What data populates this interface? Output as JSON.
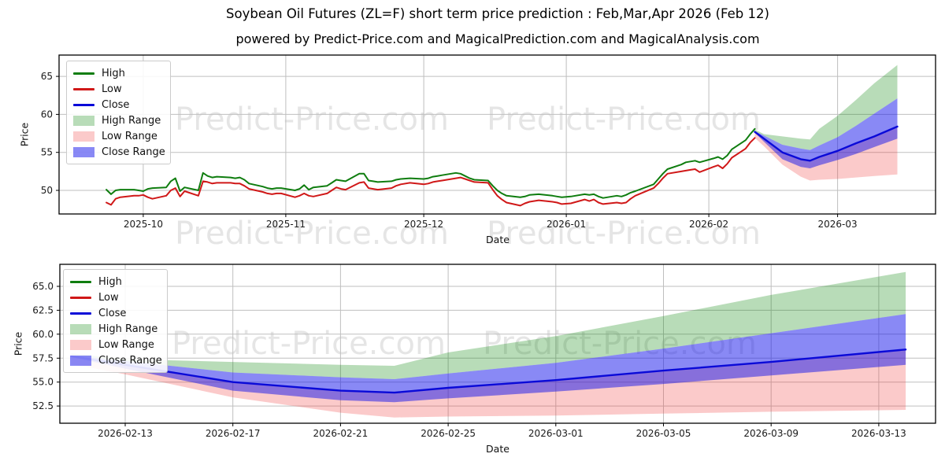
{
  "title": "Soybean Oil Futures (ZL=F) short term price prediction : Feb,Mar,Apr 2026 (Feb 12)",
  "subtitle": "powered by Predict-Price.com and MagicalPrediction.com and MagicalAnalysis.com",
  "watermark": {
    "text": "Predict-Price.com"
  },
  "axes": {
    "xlabel": "Date",
    "ylabel": "Price"
  },
  "colors": {
    "high_line": "#0f7d0f",
    "low_line": "#d01818",
    "close_line": "#0a0ad8",
    "high_fill": "rgba(0,128,0,0.28)",
    "low_fill": "rgba(240,60,60,0.27)",
    "close_fill": "rgba(20,20,235,0.50)",
    "grid": "#bfbfbf",
    "spine": "#000000",
    "tick_text": "#1a1a1a"
  },
  "legend": {
    "items": [
      {
        "label": "High",
        "swatch": "line",
        "color": "high_line"
      },
      {
        "label": "Low",
        "swatch": "line",
        "color": "low_line"
      },
      {
        "label": "Close",
        "swatch": "line",
        "color": "close_line"
      },
      {
        "label": "High Range",
        "swatch": "patch",
        "color": "high_fill"
      },
      {
        "label": "Low Range",
        "swatch": "patch",
        "color": "low_fill"
      },
      {
        "label": "Close Range",
        "swatch": "patch",
        "color": "close_fill"
      }
    ]
  },
  "chart_data": [
    {
      "type": "line",
      "name": "history-and-forecast",
      "xlabel": "Date",
      "ylabel": "Price",
      "grid": true,
      "legend_position": "upper left",
      "xlim_dates": [
        "2025-09-13",
        "2026-03-22"
      ],
      "ylim": [
        46.9,
        67.8
      ],
      "x_ticks": [
        {
          "date": "2025-10-01",
          "label": "2025-10"
        },
        {
          "date": "2025-11-01",
          "label": "2025-11"
        },
        {
          "date": "2025-12-01",
          "label": "2025-12"
        },
        {
          "date": "2026-01-01",
          "label": "2026-01"
        },
        {
          "date": "2026-02-01",
          "label": "2026-02"
        },
        {
          "date": "2026-03-01",
          "label": "2026-03"
        }
      ],
      "y_ticks": [
        {
          "value": 50,
          "label": "50"
        },
        {
          "value": 55,
          "label": "55"
        },
        {
          "value": 60,
          "label": "60"
        },
        {
          "value": 65,
          "label": "65"
        }
      ],
      "series": {
        "history": {
          "dates": [
            "2025-09-23",
            "2025-09-24",
            "2025-09-25",
            "2025-09-26",
            "2025-09-29",
            "2025-09-30",
            "2025-10-01",
            "2025-10-02",
            "2025-10-03",
            "2025-10-06",
            "2025-10-07",
            "2025-10-08",
            "2025-10-09",
            "2025-10-10",
            "2025-10-13",
            "2025-10-14",
            "2025-10-15",
            "2025-10-16",
            "2025-10-17",
            "2025-10-20",
            "2025-10-21",
            "2025-10-22",
            "2025-10-23",
            "2025-10-24",
            "2025-10-27",
            "2025-10-28",
            "2025-10-29",
            "2025-10-30",
            "2025-10-31",
            "2025-11-03",
            "2025-11-04",
            "2025-11-05",
            "2025-11-06",
            "2025-11-07",
            "2025-11-10",
            "2025-11-11",
            "2025-11-12",
            "2025-11-13",
            "2025-11-14",
            "2025-11-17",
            "2025-11-18",
            "2025-11-19",
            "2025-11-20",
            "2025-11-21",
            "2025-11-24",
            "2025-11-25",
            "2025-11-26",
            "2025-11-28",
            "2025-12-01",
            "2025-12-02",
            "2025-12-03",
            "2025-12-04",
            "2025-12-05",
            "2025-12-08",
            "2025-12-09",
            "2025-12-10",
            "2025-12-11",
            "2025-12-12",
            "2025-12-15",
            "2025-12-16",
            "2025-12-17",
            "2025-12-18",
            "2025-12-19",
            "2025-12-22",
            "2025-12-23",
            "2025-12-24",
            "2025-12-26",
            "2025-12-29",
            "2025-12-30",
            "2025-12-31",
            "2026-01-02",
            "2026-01-05",
            "2026-01-06",
            "2026-01-07",
            "2026-01-08",
            "2026-01-09",
            "2026-01-12",
            "2026-01-13",
            "2026-01-14",
            "2026-01-15",
            "2026-01-16",
            "2026-01-20",
            "2026-01-21",
            "2026-01-22",
            "2026-01-23",
            "2026-01-26",
            "2026-01-27",
            "2026-01-28",
            "2026-01-29",
            "2026-01-30",
            "2026-02-02",
            "2026-02-03",
            "2026-02-04",
            "2026-02-05",
            "2026-02-06",
            "2026-02-09",
            "2026-02-10",
            "2026-02-11"
          ],
          "high": [
            50.1,
            49.5,
            50.0,
            50.1,
            50.1,
            50.0,
            49.9,
            50.2,
            50.3,
            50.4,
            51.2,
            51.6,
            49.9,
            50.4,
            50.0,
            52.3,
            51.9,
            51.7,
            51.8,
            51.7,
            51.6,
            51.7,
            51.4,
            50.9,
            50.5,
            50.3,
            50.2,
            50.3,
            50.3,
            50.0,
            50.2,
            50.7,
            50.1,
            50.4,
            50.6,
            51.0,
            51.4,
            51.3,
            51.2,
            52.2,
            52.2,
            51.3,
            51.2,
            51.1,
            51.2,
            51.4,
            51.5,
            51.6,
            51.5,
            51.6,
            51.8,
            51.9,
            52.0,
            52.3,
            52.2,
            51.9,
            51.6,
            51.4,
            51.3,
            50.6,
            50.0,
            49.6,
            49.3,
            49.1,
            49.2,
            49.4,
            49.5,
            49.3,
            49.2,
            49.1,
            49.2,
            49.5,
            49.4,
            49.5,
            49.2,
            49.0,
            49.3,
            49.2,
            49.4,
            49.7,
            49.9,
            50.8,
            51.5,
            52.2,
            52.8,
            53.4,
            53.7,
            53.8,
            53.9,
            53.7,
            54.2,
            54.4,
            54.1,
            54.6,
            55.4,
            56.6,
            57.4,
            58.1
          ],
          "low": [
            48.4,
            48.1,
            48.9,
            49.1,
            49.3,
            49.3,
            49.4,
            49.1,
            48.9,
            49.3,
            50.0,
            50.3,
            49.2,
            49.9,
            49.3,
            51.2,
            51.1,
            50.9,
            51.0,
            51.0,
            50.9,
            50.9,
            50.6,
            50.2,
            49.8,
            49.6,
            49.5,
            49.6,
            49.6,
            49.1,
            49.3,
            49.6,
            49.3,
            49.2,
            49.6,
            50.0,
            50.4,
            50.2,
            50.1,
            51.0,
            51.1,
            50.3,
            50.2,
            50.1,
            50.3,
            50.6,
            50.8,
            51.0,
            50.8,
            50.9,
            51.1,
            51.2,
            51.3,
            51.6,
            51.7,
            51.5,
            51.3,
            51.1,
            51.0,
            50.1,
            49.3,
            48.8,
            48.4,
            48.0,
            48.3,
            48.5,
            48.7,
            48.5,
            48.4,
            48.2,
            48.3,
            48.8,
            48.6,
            48.8,
            48.4,
            48.2,
            48.4,
            48.3,
            48.4,
            48.9,
            49.3,
            50.3,
            50.9,
            51.6,
            52.2,
            52.5,
            52.6,
            52.7,
            52.8,
            52.4,
            53.1,
            53.3,
            52.9,
            53.5,
            54.3,
            55.5,
            56.3,
            56.9
          ]
        },
        "forecast": {
          "dates": [
            "2026-02-11",
            "2026-02-13",
            "2026-02-17",
            "2026-02-21",
            "2026-02-23",
            "2026-02-25",
            "2026-03-01",
            "2026-03-05",
            "2026-03-09",
            "2026-03-14"
          ],
          "high_upper": [
            58.0,
            57.4,
            57.1,
            56.8,
            56.7,
            58.1,
            59.8,
            61.9,
            64.1,
            66.5
          ],
          "close_upper": [
            57.8,
            57.2,
            56.0,
            55.5,
            55.3,
            55.9,
            57.0,
            58.5,
            60.1,
            62.1
          ],
          "close": [
            57.7,
            56.8,
            55.0,
            54.1,
            53.9,
            54.4,
            55.2,
            56.2,
            57.1,
            58.4
          ],
          "close_lower": [
            57.6,
            56.4,
            54.1,
            53.1,
            52.9,
            53.3,
            54.0,
            54.8,
            55.7,
            56.8
          ],
          "low_lower": [
            56.9,
            55.8,
            53.4,
            51.8,
            51.3,
            51.4,
            51.5,
            51.7,
            51.9,
            52.1
          ]
        }
      }
    },
    {
      "type": "line",
      "name": "forecast-detail",
      "xlabel": "Date",
      "ylabel": "Price",
      "grid": true,
      "legend_position": "upper left",
      "xlim_dates": [
        "2026-02-10",
        "2026-03-15"
      ],
      "ylim": [
        50.7,
        67.3
      ],
      "x_ticks": [
        {
          "date": "2026-02-13",
          "label": "2026-02-13"
        },
        {
          "date": "2026-02-17",
          "label": "2026-02-17"
        },
        {
          "date": "2026-02-21",
          "label": "2026-02-21"
        },
        {
          "date": "2026-02-25",
          "label": "2026-02-25"
        },
        {
          "date": "2026-03-01",
          "label": "2026-03-01"
        },
        {
          "date": "2026-03-05",
          "label": "2026-03-05"
        },
        {
          "date": "2026-03-09",
          "label": "2026-03-09"
        },
        {
          "date": "2026-03-13",
          "label": "2026-03-13"
        }
      ],
      "y_ticks": [
        {
          "value": 52.5,
          "label": "52.5"
        },
        {
          "value": 55.0,
          "label": "55.0"
        },
        {
          "value": 57.5,
          "label": "57.5"
        },
        {
          "value": 60.0,
          "label": "60.0"
        },
        {
          "value": 62.5,
          "label": "62.5"
        },
        {
          "value": 65.0,
          "label": "65.0"
        }
      ],
      "series": {
        "forecast": {
          "dates": [
            "2026-02-11",
            "2026-02-13",
            "2026-02-17",
            "2026-02-21",
            "2026-02-23",
            "2026-02-25",
            "2026-03-01",
            "2026-03-05",
            "2026-03-09",
            "2026-03-14"
          ],
          "high_upper": [
            58.0,
            57.4,
            57.1,
            56.8,
            56.7,
            58.1,
            59.8,
            61.9,
            64.1,
            66.5
          ],
          "close_upper": [
            57.8,
            57.2,
            56.0,
            55.5,
            55.3,
            55.9,
            57.0,
            58.5,
            60.1,
            62.1
          ],
          "close": [
            57.7,
            56.8,
            55.0,
            54.1,
            53.9,
            54.4,
            55.2,
            56.2,
            57.1,
            58.4
          ],
          "close_lower": [
            57.6,
            56.4,
            54.1,
            53.1,
            52.9,
            53.3,
            54.0,
            54.8,
            55.7,
            56.8
          ],
          "low_lower": [
            56.9,
            55.8,
            53.4,
            51.8,
            51.3,
            51.4,
            51.5,
            51.7,
            51.9,
            52.1
          ]
        }
      }
    }
  ]
}
